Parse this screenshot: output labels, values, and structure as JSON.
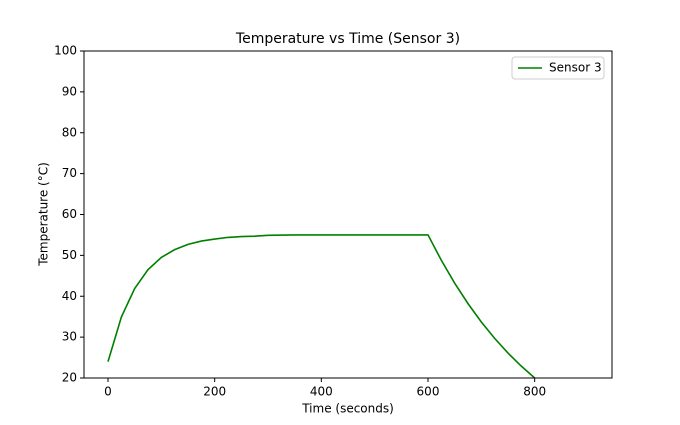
{
  "chart_data": {
    "type": "line",
    "title": "Temperature vs Time (Sensor 3)",
    "x_label": "Time (seconds)",
    "y_label": "Temperature (°C)",
    "x": [
      0,
      25,
      50,
      75,
      100,
      125,
      150,
      175,
      200,
      225,
      250,
      275,
      300,
      350,
      400,
      450,
      500,
      550,
      600,
      625,
      650,
      675,
      700,
      725,
      750,
      775,
      800
    ],
    "series": [
      {
        "name": "Sensor 3",
        "color": "#008000",
        "values": [
          24,
          34.9,
          41.9,
          46.5,
          49.5,
          51.4,
          52.7,
          53.5,
          54.0,
          54.4,
          54.6,
          54.7,
          54.9,
          55,
          55,
          55,
          55,
          55,
          55,
          48.8,
          43.2,
          38.2,
          33.7,
          29.7,
          26.1,
          22.9,
          20.0
        ]
      }
    ],
    "xlim": [
      -45,
      945
    ],
    "xticks": [
      0,
      200,
      400,
      600,
      800
    ],
    "ylim": [
      20,
      100
    ],
    "yticks": [
      20,
      30,
      40,
      50,
      60,
      70,
      80,
      90,
      100
    ],
    "legend": "upper right",
    "grid": false
  }
}
